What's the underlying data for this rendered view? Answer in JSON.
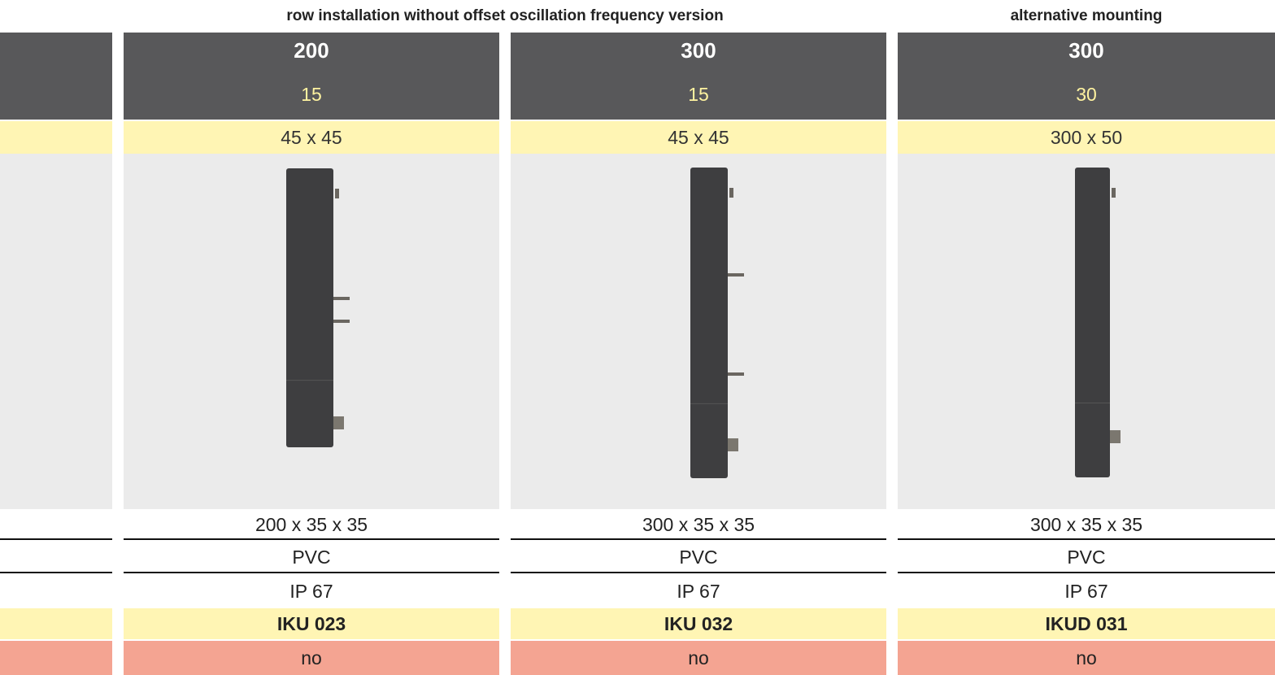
{
  "header": {
    "groups": [
      "row installation without offset oscillation frequency version",
      "alternative mounting"
    ]
  },
  "table": {
    "rows": [
      [
        "200",
        "300",
        "300"
      ],
      [
        "15",
        "15",
        "30"
      ],
      [
        "45 x 45",
        "45 x 45",
        "300 x 50"
      ],
      [
        "200 x 35 x 35",
        "300 x 35 x 35",
        "300 x 35 x 35"
      ],
      [
        "PVC",
        "PVC",
        "PVC"
      ],
      [
        "IP 67",
        "IP 67",
        "IP 67"
      ],
      [
        "IKU 023",
        "IKU 032",
        "IKUD 031"
      ],
      [
        "no",
        "no",
        "no"
      ]
    ]
  }
}
